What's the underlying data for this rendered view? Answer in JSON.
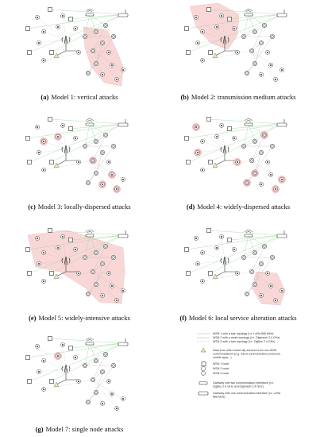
{
  "panels": [
    {
      "label": "(a)",
      "text": "Model 1: vertical attacks"
    },
    {
      "label": "(b)",
      "text": "Model 2: transmission medium attacks"
    },
    {
      "label": "(c)",
      "text": "Model 3: locally-dispersed attacks"
    },
    {
      "label": "(d)",
      "text": "Model 4: widely-dispersed attacks"
    },
    {
      "label": "(e)",
      "text": "Model 5: widely-intensive attacks"
    },
    {
      "label": "(f)",
      "text": "Model 6: local service alteration attacks"
    },
    {
      "label": "(g)",
      "text": "Model 7: single node attacks"
    }
  ],
  "legend": [
    "WSN 1 with a star topology (i.e. LoRa 868 MHz)",
    "WSN 2 with a mesh topology (i.e. Digimesh 2.4 GHz)",
    "WSN 3 with a tree topology (i.e. ZigBee 2.4 GHz)",
    "Data from other smart city services from non-WSN communications (e.g. wired communication protocols, mobile apps...)",
    "WSN 1 node",
    "WSN 2 node",
    "WSN 3 node",
    "Gateway with two communication interfaces (i.e. ZigBee 2.4 GHz and Digimesh 2.4 GHz)",
    "Gateway with one communication interface (i.e. LoRa 868 MHz)"
  ]
}
